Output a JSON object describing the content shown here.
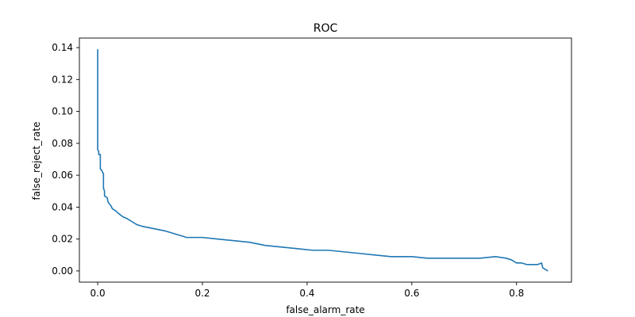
{
  "chart_data": {
    "type": "line",
    "title": "ROC",
    "xlabel": "false_alarm_rate",
    "ylabel": "false_reject_rate",
    "xlim": [
      -0.035,
      0.905
    ],
    "ylim": [
      -0.007,
      0.146
    ],
    "grid": false,
    "xticks": [
      0.0,
      0.2,
      0.4,
      0.6,
      0.8
    ],
    "xtick_labels": [
      "0.0",
      "0.2",
      "0.4",
      "0.6",
      "0.8"
    ],
    "yticks": [
      0.0,
      0.02,
      0.04,
      0.06,
      0.08,
      0.1,
      0.12,
      0.14
    ],
    "ytick_labels": [
      "0.00",
      "0.02",
      "0.04",
      "0.06",
      "0.08",
      "0.10",
      "0.12",
      "0.14"
    ],
    "series": [
      {
        "color": "#1f77b4",
        "x": [
          0.0,
          0.0,
          0.002,
          0.002,
          0.005,
          0.005,
          0.008,
          0.009,
          0.011,
          0.011,
          0.013,
          0.013,
          0.018,
          0.02,
          0.025,
          0.028,
          0.033,
          0.04,
          0.048,
          0.055,
          0.065,
          0.075,
          0.085,
          0.1,
          0.115,
          0.13,
          0.15,
          0.17,
          0.2,
          0.23,
          0.26,
          0.29,
          0.32,
          0.35,
          0.38,
          0.41,
          0.44,
          0.47,
          0.5,
          0.53,
          0.56,
          0.6,
          0.63,
          0.66,
          0.7,
          0.73,
          0.76,
          0.78,
          0.79,
          0.8,
          0.81,
          0.82,
          0.84,
          0.848,
          0.85,
          0.855,
          0.86
        ],
        "y": [
          0.139,
          0.076,
          0.075,
          0.073,
          0.073,
          0.064,
          0.063,
          0.062,
          0.061,
          0.052,
          0.05,
          0.047,
          0.046,
          0.043,
          0.041,
          0.039,
          0.038,
          0.036,
          0.034,
          0.033,
          0.031,
          0.029,
          0.028,
          0.027,
          0.026,
          0.025,
          0.023,
          0.021,
          0.021,
          0.02,
          0.019,
          0.018,
          0.016,
          0.015,
          0.014,
          0.013,
          0.013,
          0.012,
          0.011,
          0.01,
          0.009,
          0.009,
          0.008,
          0.008,
          0.008,
          0.008,
          0.009,
          0.008,
          0.007,
          0.005,
          0.005,
          0.004,
          0.004,
          0.005,
          0.002,
          0.001,
          0.0
        ]
      }
    ]
  }
}
